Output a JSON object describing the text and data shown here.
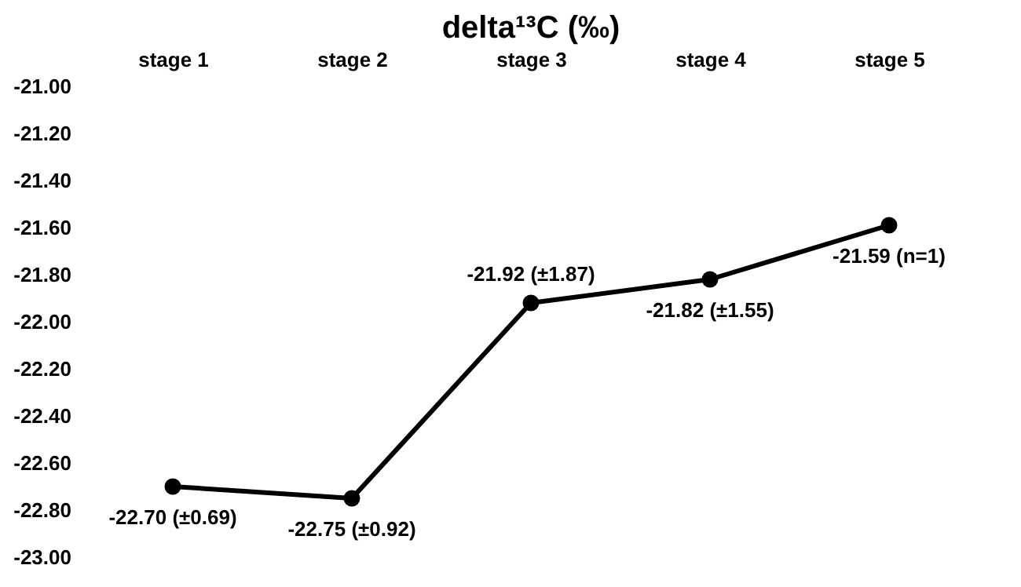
{
  "chart_data": {
    "type": "line",
    "title": "delta¹³C (‰)",
    "categories": [
      "stage 1",
      "stage 2",
      "stage 3",
      "stage 4",
      "stage 5"
    ],
    "series": [
      {
        "color": "#000000",
        "values": [
          -22.7,
          -22.75,
          -21.92,
          -21.82,
          -21.59
        ],
        "value_labels": [
          "-22.70 (±0.69)",
          "-22.75 (±0.92)",
          "-21.92 (±1.87)",
          "-21.82 (±1.55)",
          "-21.59 (n=1)"
        ]
      }
    ],
    "ylim": [
      -23,
      -21
    ],
    "yticks": [
      {
        "value": -23,
        "label": "-23.00"
      },
      {
        "value": -22.8,
        "label": "-22.80"
      },
      {
        "value": -22.6,
        "label": "-22.60"
      },
      {
        "value": -22.4,
        "label": "-22.40"
      },
      {
        "value": -22.2,
        "label": "-22.20"
      },
      {
        "value": -22,
        "label": "-22.00"
      },
      {
        "value": -21.8,
        "label": "-21.80"
      },
      {
        "value": -21.6,
        "label": "-21.60"
      },
      {
        "value": -21.4,
        "label": "-21.40"
      },
      {
        "value": -21.2,
        "label": "-21.20"
      },
      {
        "value": -21,
        "label": "-21.00"
      }
    ],
    "grid": false,
    "marker": "circle",
    "line_style": "solid"
  }
}
